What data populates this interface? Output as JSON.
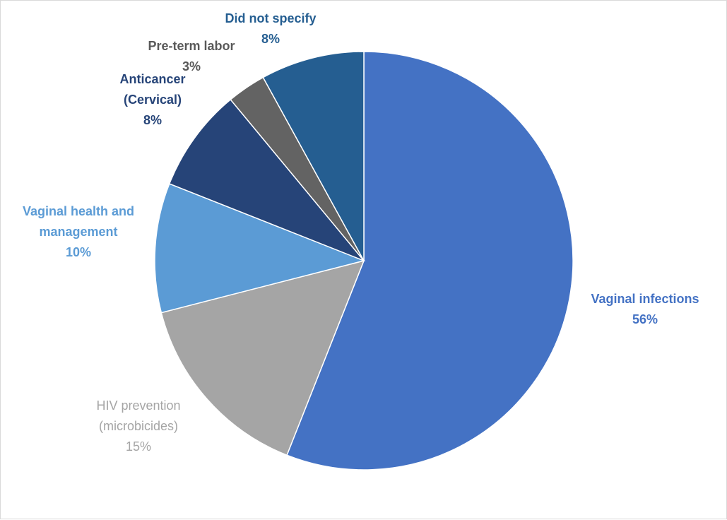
{
  "chart_data": {
    "type": "pie",
    "title": "",
    "categories": [
      "Vaginal infections",
      "HIV prevention (microbicides)",
      "Vaginal health and management",
      "Anticancer (Cervical)",
      "Pre-term labor",
      "Did not specify"
    ],
    "values": [
      56,
      15,
      10,
      8,
      3,
      8
    ],
    "colors": [
      "#4472C4",
      "#A5A5A5",
      "#5B9BD5",
      "#264478",
      "#636363",
      "#255E91"
    ],
    "labels": [
      {
        "lines": [
          "Vaginal infections"
        ],
        "value": "56%",
        "color": "#4472C4",
        "bold": true
      },
      {
        "lines": [
          "HIV prevention",
          "(microbicides)"
        ],
        "value": "15%",
        "color": "#A5A5A5",
        "bold": false
      },
      {
        "lines": [
          "Vaginal health and",
          "management"
        ],
        "value": "10%",
        "color": "#5B9BD5",
        "bold": true
      },
      {
        "lines": [
          "Anticancer",
          "(Cervical)"
        ],
        "value": "8%",
        "color": "#264478",
        "bold": true
      },
      {
        "lines": [
          "Pre-term labor"
        ],
        "value": "3%",
        "color": "#595959",
        "bold": true
      },
      {
        "lines": [
          "Did not specify"
        ],
        "value": "8%",
        "color": "#255E91",
        "bold": true
      }
    ],
    "legend": "none"
  }
}
